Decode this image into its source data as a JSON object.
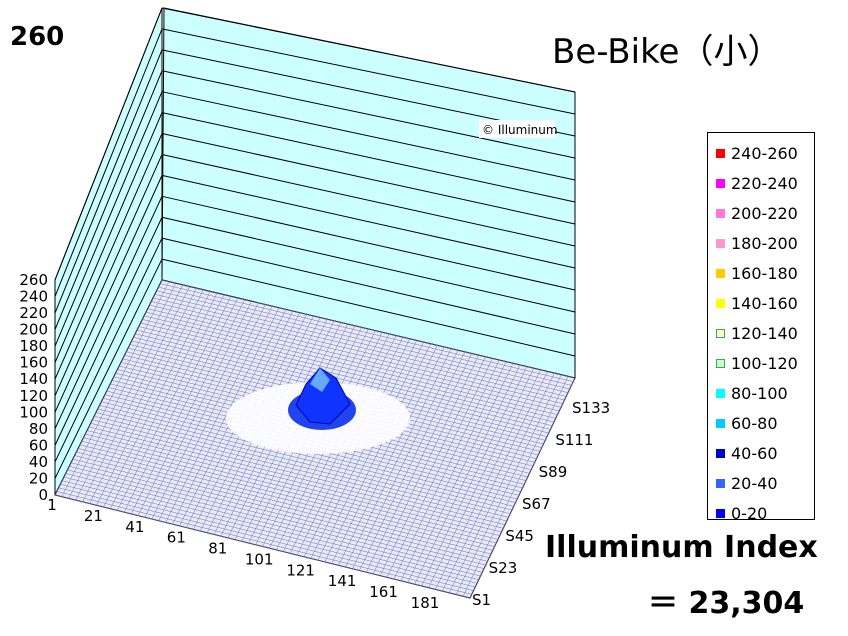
{
  "corner_value": "260",
  "title": "Be-Bike（小）",
  "index_label": "Illuminum Index",
  "index_value": "＝ 23,304",
  "watermark": "© Illuminum",
  "chart_data": {
    "type": "surface3d",
    "title": "Be-Bike（小）",
    "z_ticks": [
      "0",
      "20",
      "40",
      "60",
      "80",
      "100",
      "120",
      "140",
      "160",
      "180",
      "200",
      "220",
      "240",
      "260"
    ],
    "zlim": [
      0,
      260
    ],
    "x_ticks": [
      "1",
      "21",
      "41",
      "61",
      "81",
      "101",
      "121",
      "141",
      "161",
      "181"
    ],
    "y_ticks": [
      "S1",
      "S23",
      "S45",
      "S67",
      "S89",
      "S111",
      "S133"
    ],
    "peak_value": 75,
    "legend": [
      {
        "label": "240-260",
        "color": "#ff0000"
      },
      {
        "label": "220-240",
        "color": "#ff00ff"
      },
      {
        "label": "200-220",
        "color": "#ff77dd"
      },
      {
        "label": "180-200",
        "color": "#ff99cc"
      },
      {
        "label": "160-180",
        "color": "#ffcc00"
      },
      {
        "label": "140-160",
        "color": "#ffff00"
      },
      {
        "label": "120-140",
        "color": "#ffffcc"
      },
      {
        "label": "100-120",
        "color": "#ccffcc"
      },
      {
        "label": "80-100",
        "color": "#00ffff"
      },
      {
        "label": "60-80",
        "color": "#00ccff"
      },
      {
        "label": "40-60",
        "color": "#0000cc"
      },
      {
        "label": "20-40",
        "color": "#3366ff"
      },
      {
        "label": "0-20",
        "color": "#0000ff"
      }
    ],
    "legend_placement": "right",
    "grid": true
  }
}
